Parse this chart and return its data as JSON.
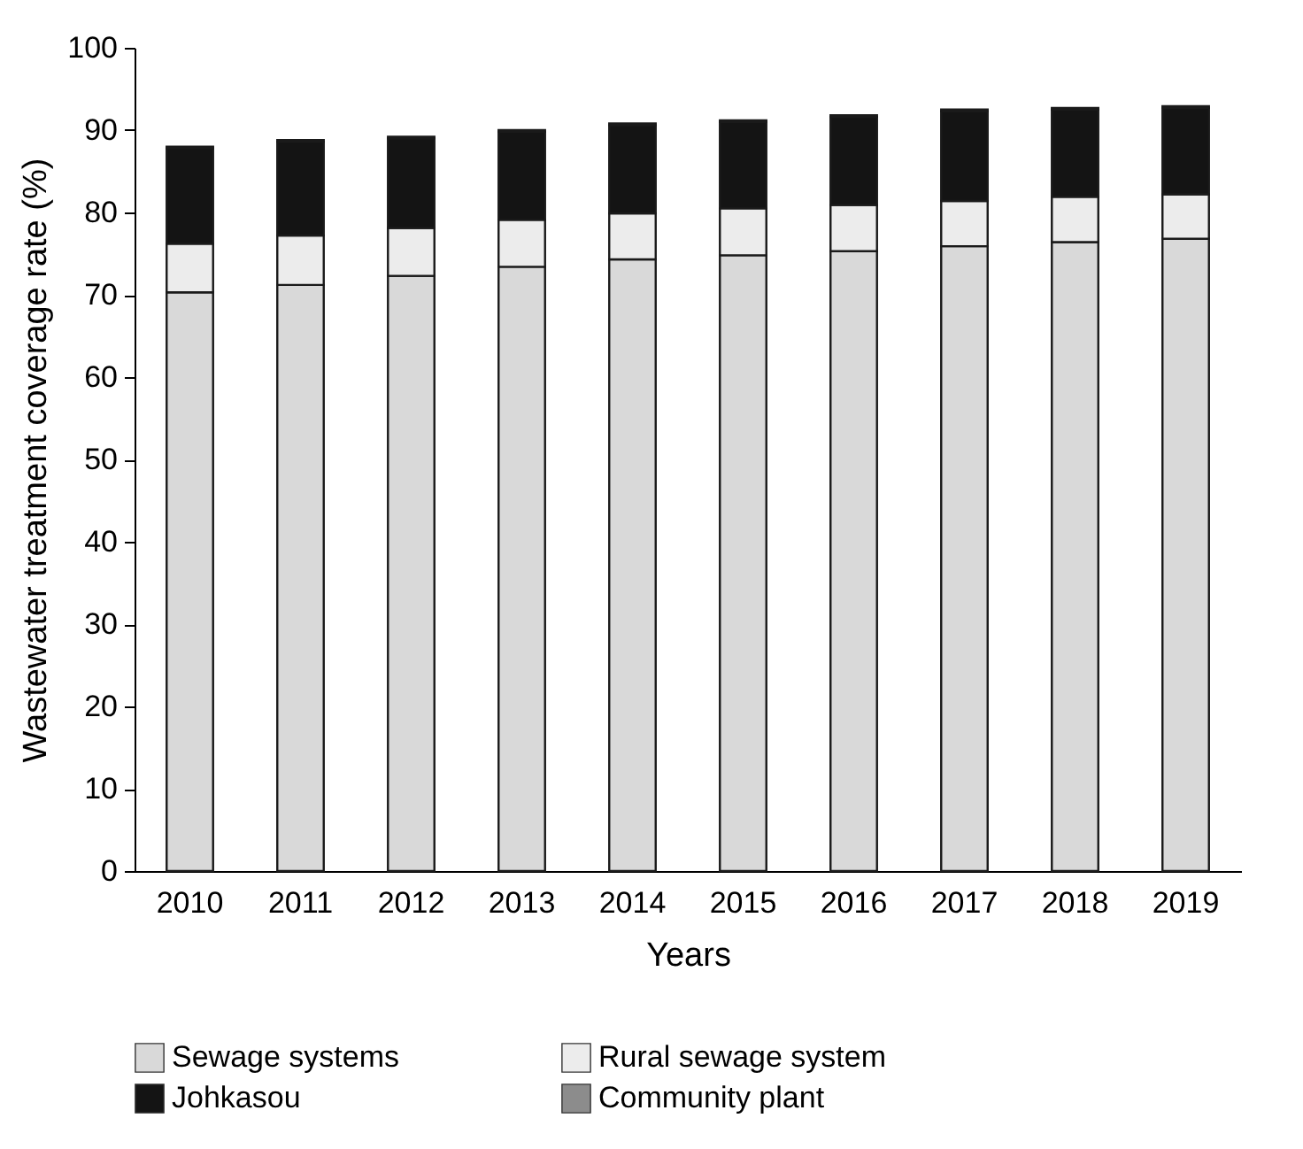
{
  "chart_data": {
    "type": "bar",
    "stacked": true,
    "xlabel": "Years",
    "ylabel": "Wastewater treatment coverage rate (%)",
    "categories": [
      "2010",
      "2011",
      "2012",
      "2013",
      "2014",
      "2015",
      "2016",
      "2017",
      "2018",
      "2019"
    ],
    "series": [
      {
        "name": "Sewage systems",
        "color": "#d9d9d9",
        "values": [
          70.3,
          71.2,
          72.3,
          73.4,
          74.3,
          74.8,
          75.3,
          75.9,
          76.4,
          76.8
        ]
      },
      {
        "name": "Rural sewage system",
        "color": "#ececec",
        "values": [
          5.9,
          6.0,
          5.8,
          5.7,
          5.6,
          5.7,
          5.6,
          5.5,
          5.5,
          5.4
        ]
      },
      {
        "name": "Johkasou",
        "color": "#141414",
        "values": [
          11.6,
          11.4,
          10.9,
          10.7,
          10.7,
          10.5,
          10.7,
          10.9,
          10.6,
          10.5
        ]
      },
      {
        "name": "Community plant",
        "color": "#8c8c8c",
        "values": [
          0.2,
          0.2,
          0.2,
          0.2,
          0.2,
          0.2,
          0.2,
          0.2,
          0.2,
          0.2
        ]
      }
    ],
    "ylim": [
      0,
      100
    ],
    "yticks": [
      0,
      10,
      20,
      30,
      40,
      50,
      60,
      70,
      80,
      90,
      100
    ],
    "grid": false,
    "legend": "bottom"
  }
}
